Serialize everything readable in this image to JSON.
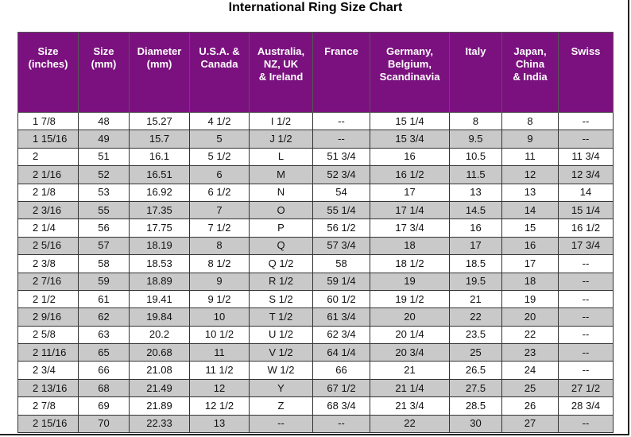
{
  "title": "International Ring Size Chart",
  "table": {
    "headers": [
      [
        "Size",
        "(inches)"
      ],
      [
        "Size",
        "(mm)"
      ],
      [
        "Diameter",
        "(mm)"
      ],
      [
        "U.S.A. &",
        "Canada"
      ],
      [
        "Australia,",
        "NZ, UK",
        "& Ireland"
      ],
      [
        "France"
      ],
      [
        "Germany,",
        "Belgium,",
        "Scandinavia"
      ],
      [
        "Italy"
      ],
      [
        "Japan,",
        "China",
        "& India"
      ],
      [
        "Swiss"
      ]
    ],
    "rows": [
      [
        "1 7/8",
        "48",
        "15.27",
        "4 1/2",
        "I 1/2",
        "--",
        "15 1/4",
        "8",
        "8",
        "--"
      ],
      [
        "1 15/16",
        "49",
        "15.7",
        "5",
        "J 1/2",
        "--",
        "15 3/4",
        "9.5",
        "9",
        "--"
      ],
      [
        "2",
        "51",
        "16.1",
        "5 1/2",
        "L",
        "51 3/4",
        "16",
        "10.5",
        "11",
        "11 3/4"
      ],
      [
        "2 1/16",
        "52",
        "16.51",
        "6",
        "M",
        "52 3/4",
        "16 1/2",
        "11.5",
        "12",
        "12 3/4"
      ],
      [
        "2 1/8",
        "53",
        "16.92",
        "6 1/2",
        "N",
        "54",
        "17",
        "13",
        "13",
        "14"
      ],
      [
        "2 3/16",
        "55",
        "17.35",
        "7",
        "O",
        "55 1/4",
        "17 1/4",
        "14.5",
        "14",
        "15 1/4"
      ],
      [
        "2 1/4",
        "56",
        "17.75",
        "7 1/2",
        "P",
        "56 1/2",
        "17 3/4",
        "16",
        "15",
        "16 1/2"
      ],
      [
        "2 5/16",
        "57",
        "18.19",
        "8",
        "Q",
        "57 3/4",
        "18",
        "17",
        "16",
        "17 3/4"
      ],
      [
        "2 3/8",
        "58",
        "18.53",
        "8 1/2",
        "Q 1/2",
        "58",
        "18 1/2",
        "18.5",
        "17",
        "--"
      ],
      [
        "2 7/16",
        "59",
        "18.89",
        "9",
        "R 1/2",
        "59 1/4",
        "19",
        "19.5",
        "18",
        "--"
      ],
      [
        "2 1/2",
        "61",
        "19.41",
        "9 1/2",
        "S 1/2",
        "60 1/2",
        "19 1/2",
        "21",
        "19",
        "--"
      ],
      [
        "2 9/16",
        "62",
        "19.84",
        "10",
        "T 1/2",
        "61 3/4",
        "20",
        "22",
        "20",
        "--"
      ],
      [
        "2 5/8",
        "63",
        "20.2",
        "10 1/2",
        "U 1/2",
        "62 3/4",
        "20 1/4",
        "23.5",
        "22",
        "--"
      ],
      [
        "2 11/16",
        "65",
        "20.68",
        "11",
        "V 1/2",
        "64 1/4",
        "20 3/4",
        "25",
        "23",
        "--"
      ],
      [
        "2 3/4",
        "66",
        "21.08",
        "11 1/2",
        "W 1/2",
        "66",
        "21",
        "26.5",
        "24",
        "--"
      ],
      [
        "2 13/16",
        "68",
        "21.49",
        "12",
        "Y",
        "67 1/2",
        "21 1/4",
        "27.5",
        "25",
        "27 1/2"
      ],
      [
        "2 7/8",
        "69",
        "21.89",
        "12 1/2",
        "Z",
        "68 3/4",
        "21 3/4",
        "28.5",
        "26",
        "28 3/4"
      ],
      [
        "2 15/16",
        "70",
        "22.33",
        "13",
        "--",
        "--",
        "22",
        "30",
        "27",
        "--"
      ]
    ]
  }
}
